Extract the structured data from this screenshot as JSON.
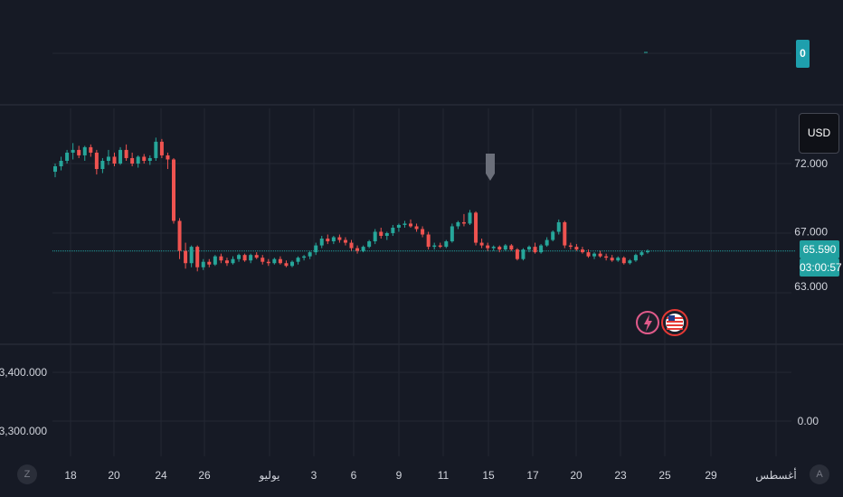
{
  "chart_data": {
    "type": "candlestick",
    "x_tick_labels": [
      "18",
      "20",
      "24",
      "26",
      "يوليو",
      "3",
      "6",
      "9",
      "11",
      "15",
      "17",
      "20",
      "23",
      "25",
      "29",
      "أغسطس"
    ],
    "main_pane": {
      "y_tick_labels": [
        "72.000",
        "67.000",
        "63.000"
      ],
      "ylim": [
        62.0,
        76.0
      ],
      "last_price": "65.590",
      "countdown": "03:00:57",
      "currency": "USD",
      "candles": [
        {
          "o": 71.4,
          "h": 72.0,
          "l": 71.0,
          "c": 71.8
        },
        {
          "o": 71.8,
          "h": 72.5,
          "l": 71.5,
          "c": 72.2
        },
        {
          "o": 72.2,
          "h": 73.0,
          "l": 72.0,
          "c": 72.8
        },
        {
          "o": 72.8,
          "h": 73.5,
          "l": 72.3,
          "c": 73.0
        },
        {
          "o": 73.0,
          "h": 73.3,
          "l": 72.4,
          "c": 72.6
        },
        {
          "o": 72.6,
          "h": 73.3,
          "l": 72.2,
          "c": 73.2
        },
        {
          "o": 73.2,
          "h": 73.4,
          "l": 72.5,
          "c": 72.8
        },
        {
          "o": 72.8,
          "h": 73.0,
          "l": 71.2,
          "c": 71.6
        },
        {
          "o": 71.6,
          "h": 72.4,
          "l": 71.3,
          "c": 72.2
        },
        {
          "o": 72.2,
          "h": 73.0,
          "l": 71.9,
          "c": 72.5
        },
        {
          "o": 72.5,
          "h": 72.8,
          "l": 71.8,
          "c": 72.0
        },
        {
          "o": 72.0,
          "h": 73.2,
          "l": 71.9,
          "c": 73.0
        },
        {
          "o": 73.0,
          "h": 73.4,
          "l": 72.2,
          "c": 72.4
        },
        {
          "o": 72.4,
          "h": 72.8,
          "l": 71.8,
          "c": 72.0
        },
        {
          "o": 72.0,
          "h": 72.6,
          "l": 71.7,
          "c": 72.5
        },
        {
          "o": 72.5,
          "h": 72.7,
          "l": 72.0,
          "c": 72.2
        },
        {
          "o": 72.2,
          "h": 72.6,
          "l": 71.9,
          "c": 72.4
        },
        {
          "o": 72.4,
          "h": 73.9,
          "l": 72.2,
          "c": 73.6
        },
        {
          "o": 73.6,
          "h": 73.8,
          "l": 72.4,
          "c": 72.6
        },
        {
          "o": 72.6,
          "h": 72.8,
          "l": 71.6,
          "c": 72.3
        },
        {
          "o": 72.3,
          "h": 72.4,
          "l": 67.6,
          "c": 67.8
        },
        {
          "o": 67.8,
          "h": 68.0,
          "l": 65.0,
          "c": 65.6
        },
        {
          "o": 65.6,
          "h": 66.2,
          "l": 64.3,
          "c": 64.7
        },
        {
          "o": 64.7,
          "h": 66.0,
          "l": 64.4,
          "c": 65.9
        },
        {
          "o": 65.9,
          "h": 66.0,
          "l": 64.1,
          "c": 64.4
        },
        {
          "o": 64.4,
          "h": 65.0,
          "l": 64.2,
          "c": 64.8
        },
        {
          "o": 64.8,
          "h": 65.0,
          "l": 64.4,
          "c": 64.6
        },
        {
          "o": 64.6,
          "h": 65.3,
          "l": 64.5,
          "c": 65.2
        },
        {
          "o": 65.2,
          "h": 65.4,
          "l": 64.7,
          "c": 64.9
        },
        {
          "o": 64.9,
          "h": 65.1,
          "l": 64.5,
          "c": 64.7
        },
        {
          "o": 64.7,
          "h": 65.2,
          "l": 64.6,
          "c": 65.0
        },
        {
          "o": 65.0,
          "h": 65.4,
          "l": 64.8,
          "c": 65.3
        },
        {
          "o": 65.3,
          "h": 65.4,
          "l": 64.8,
          "c": 64.9
        },
        {
          "o": 64.9,
          "h": 65.4,
          "l": 64.7,
          "c": 65.3
        },
        {
          "o": 65.3,
          "h": 65.5,
          "l": 65.0,
          "c": 65.1
        },
        {
          "o": 65.1,
          "h": 65.3,
          "l": 64.6,
          "c": 64.8
        },
        {
          "o": 64.8,
          "h": 65.0,
          "l": 64.5,
          "c": 64.7
        },
        {
          "o": 64.7,
          "h": 65.1,
          "l": 64.6,
          "c": 65.0
        },
        {
          "o": 65.0,
          "h": 65.2,
          "l": 64.6,
          "c": 64.7
        },
        {
          "o": 64.7,
          "h": 64.9,
          "l": 64.4,
          "c": 64.5
        },
        {
          "o": 64.5,
          "h": 64.9,
          "l": 64.4,
          "c": 64.8
        },
        {
          "o": 64.8,
          "h": 65.2,
          "l": 64.6,
          "c": 65.1
        },
        {
          "o": 65.1,
          "h": 65.3,
          "l": 64.9,
          "c": 65.2
        },
        {
          "o": 65.2,
          "h": 65.6,
          "l": 65.0,
          "c": 65.5
        },
        {
          "o": 65.5,
          "h": 66.2,
          "l": 65.3,
          "c": 66.0
        },
        {
          "o": 66.0,
          "h": 66.7,
          "l": 65.8,
          "c": 66.5
        },
        {
          "o": 66.5,
          "h": 66.8,
          "l": 66.1,
          "c": 66.3
        },
        {
          "o": 66.3,
          "h": 66.7,
          "l": 66.1,
          "c": 66.6
        },
        {
          "o": 66.6,
          "h": 66.8,
          "l": 66.2,
          "c": 66.4
        },
        {
          "o": 66.4,
          "h": 66.6,
          "l": 66.0,
          "c": 66.2
        },
        {
          "o": 66.2,
          "h": 66.4,
          "l": 65.6,
          "c": 65.8
        },
        {
          "o": 65.8,
          "h": 66.0,
          "l": 65.4,
          "c": 65.6
        },
        {
          "o": 65.6,
          "h": 66.0,
          "l": 65.5,
          "c": 65.9
        },
        {
          "o": 65.9,
          "h": 66.4,
          "l": 65.8,
          "c": 66.3
        },
        {
          "o": 66.3,
          "h": 67.2,
          "l": 66.1,
          "c": 67.0
        },
        {
          "o": 67.0,
          "h": 67.3,
          "l": 66.5,
          "c": 66.7
        },
        {
          "o": 66.7,
          "h": 67.0,
          "l": 66.4,
          "c": 66.9
        },
        {
          "o": 66.9,
          "h": 67.5,
          "l": 66.7,
          "c": 67.3
        },
        {
          "o": 67.3,
          "h": 67.6,
          "l": 67.0,
          "c": 67.5
        },
        {
          "o": 67.5,
          "h": 67.8,
          "l": 67.3,
          "c": 67.6
        },
        {
          "o": 67.6,
          "h": 67.9,
          "l": 67.3,
          "c": 67.4
        },
        {
          "o": 67.4,
          "h": 67.6,
          "l": 67.0,
          "c": 67.2
        },
        {
          "o": 67.2,
          "h": 67.4,
          "l": 66.6,
          "c": 66.8
        },
        {
          "o": 66.8,
          "h": 67.0,
          "l": 65.7,
          "c": 65.9
        },
        {
          "o": 65.9,
          "h": 66.2,
          "l": 65.7,
          "c": 66.0
        },
        {
          "o": 66.0,
          "h": 66.2,
          "l": 65.8,
          "c": 65.9
        },
        {
          "o": 65.9,
          "h": 66.4,
          "l": 65.8,
          "c": 66.3
        },
        {
          "o": 66.3,
          "h": 67.6,
          "l": 66.2,
          "c": 67.4
        },
        {
          "o": 67.4,
          "h": 67.8,
          "l": 67.2,
          "c": 67.7
        },
        {
          "o": 67.7,
          "h": 68.3,
          "l": 67.4,
          "c": 67.6
        },
        {
          "o": 67.6,
          "h": 68.6,
          "l": 67.5,
          "c": 68.4
        },
        {
          "o": 68.4,
          "h": 68.5,
          "l": 66.0,
          "c": 66.2
        },
        {
          "o": 66.2,
          "h": 66.5,
          "l": 65.8,
          "c": 66.0
        },
        {
          "o": 66.0,
          "h": 66.2,
          "l": 65.6,
          "c": 65.8
        },
        {
          "o": 65.8,
          "h": 66.0,
          "l": 65.6,
          "c": 65.9
        },
        {
          "o": 65.9,
          "h": 66.0,
          "l": 65.5,
          "c": 65.7
        },
        {
          "o": 65.7,
          "h": 66.1,
          "l": 65.6,
          "c": 66.0
        },
        {
          "o": 66.0,
          "h": 66.1,
          "l": 65.6,
          "c": 65.7
        },
        {
          "o": 65.7,
          "h": 65.8,
          "l": 64.9,
          "c": 65.0
        },
        {
          "o": 65.0,
          "h": 65.8,
          "l": 64.9,
          "c": 65.7
        },
        {
          "o": 65.7,
          "h": 66.0,
          "l": 65.5,
          "c": 65.9
        },
        {
          "o": 65.9,
          "h": 66.2,
          "l": 65.4,
          "c": 65.5
        },
        {
          "o": 65.5,
          "h": 66.1,
          "l": 65.4,
          "c": 66.0
        },
        {
          "o": 66.0,
          "h": 66.6,
          "l": 65.9,
          "c": 66.4
        },
        {
          "o": 66.4,
          "h": 67.1,
          "l": 66.3,
          "c": 67.0
        },
        {
          "o": 67.0,
          "h": 67.9,
          "l": 66.8,
          "c": 67.7
        },
        {
          "o": 67.7,
          "h": 67.8,
          "l": 65.8,
          "c": 66.0
        },
        {
          "o": 66.0,
          "h": 66.2,
          "l": 65.7,
          "c": 65.9
        },
        {
          "o": 65.9,
          "h": 66.1,
          "l": 65.6,
          "c": 65.7
        },
        {
          "o": 65.7,
          "h": 65.9,
          "l": 65.4,
          "c": 65.5
        },
        {
          "o": 65.5,
          "h": 65.7,
          "l": 65.1,
          "c": 65.2
        },
        {
          "o": 65.2,
          "h": 65.5,
          "l": 65.0,
          "c": 65.4
        },
        {
          "o": 65.4,
          "h": 65.6,
          "l": 65.1,
          "c": 65.2
        },
        {
          "o": 65.2,
          "h": 65.4,
          "l": 64.9,
          "c": 65.1
        },
        {
          "o": 65.1,
          "h": 65.3,
          "l": 64.8,
          "c": 64.9
        },
        {
          "o": 64.9,
          "h": 65.2,
          "l": 64.8,
          "c": 65.1
        },
        {
          "o": 65.1,
          "h": 65.2,
          "l": 64.6,
          "c": 64.7
        },
        {
          "o": 64.7,
          "h": 65.0,
          "l": 64.6,
          "c": 64.9
        },
        {
          "o": 64.9,
          "h": 65.4,
          "l": 64.8,
          "c": 65.3
        },
        {
          "o": 65.3,
          "h": 65.6,
          "l": 65.2,
          "c": 65.5
        },
        {
          "o": 65.5,
          "h": 65.7,
          "l": 65.4,
          "c": 65.6
        }
      ]
    },
    "lower_pane": {
      "left_tick_labels": [
        "3,400.000",
        "3,300.000"
      ],
      "right_tick_labels": [
        "0.00"
      ]
    },
    "top_badge": "0",
    "corner_left": "Z",
    "corner_right": "A",
    "colors": {
      "background": "#161a25",
      "up": "#26a69a",
      "down": "#ef5350",
      "price_line": "#22a1a1",
      "grid": "#242833",
      "separator": "#2f3340",
      "event_lightning": "#e05a8a",
      "event_flag": "#e53935"
    },
    "event_icons": [
      "lightning-event-icon",
      "us-flag-event-icon"
    ],
    "marker_icon": "pin-marker-icon"
  }
}
